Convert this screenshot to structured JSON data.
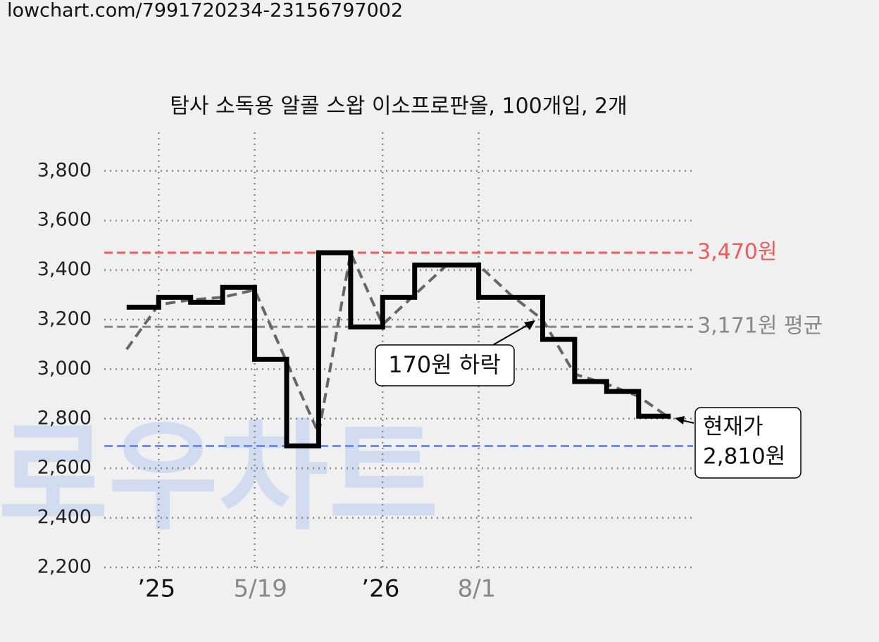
{
  "source": "lowchart.com/7991720234-23156797002",
  "chart_data": {
    "type": "step",
    "title": "탐사 소독용 알콜 스왑 이소프로판올, 100개입, 2개",
    "watermark": "로우차트",
    "x": [
      0,
      1,
      2,
      3,
      4,
      5,
      6,
      7,
      8,
      9,
      10,
      11,
      12,
      13,
      14,
      15,
      16,
      17
    ],
    "series": [
      {
        "color": "#000000",
        "style": "step",
        "values": [
          3250,
          3290,
          3270,
          3330,
          3040,
          2690,
          3470,
          3170,
          3290,
          3420,
          3420,
          3290,
          3290,
          3120,
          2950,
          2910,
          2810,
          2810
        ]
      },
      {
        "color": "#666666",
        "style": "dashed",
        "values": [
          3080,
          3260,
          3280,
          3290,
          3320,
          3030,
          2740,
          3470,
          3180,
          3300,
          3420,
          3420,
          3300,
          3200,
          2980,
          2940,
          2890,
          2800
        ]
      }
    ],
    "xlim": [
      -0.7,
      17.7
    ],
    "ylim": [
      2200,
      3950
    ],
    "xticks": [
      {
        "value": 1,
        "label": "’25",
        "color": "#111111"
      },
      {
        "value": 4,
        "label": "5/19",
        "color": "#888888"
      },
      {
        "value": 8,
        "label": "’26",
        "color": "#111111"
      },
      {
        "value": 11,
        "label": "8/1",
        "color": "#888888"
      }
    ],
    "yticks": [
      {
        "value": 2200,
        "label": "2,200"
      },
      {
        "value": 2400,
        "label": "2,400"
      },
      {
        "value": 2600,
        "label": "2,600"
      },
      {
        "value": 2800,
        "label": "2,800"
      },
      {
        "value": 3000,
        "label": "3,000"
      },
      {
        "value": 3200,
        "label": "3,200"
      },
      {
        "value": 3400,
        "label": "3,400"
      },
      {
        "value": 3600,
        "label": "3,600"
      },
      {
        "value": 3800,
        "label": "3,800"
      }
    ],
    "grid": true,
    "hlines": [
      {
        "value": 3470,
        "label": "3,470원",
        "color": "#f05a5a"
      },
      {
        "value": 3171,
        "label": "3,171원 평균",
        "color": "#888888"
      },
      {
        "value": 2690,
        "color": "#6f8ff0"
      }
    ],
    "drop_note": "170원 하락",
    "current_note": [
      "현재가",
      "2,810원"
    ]
  }
}
